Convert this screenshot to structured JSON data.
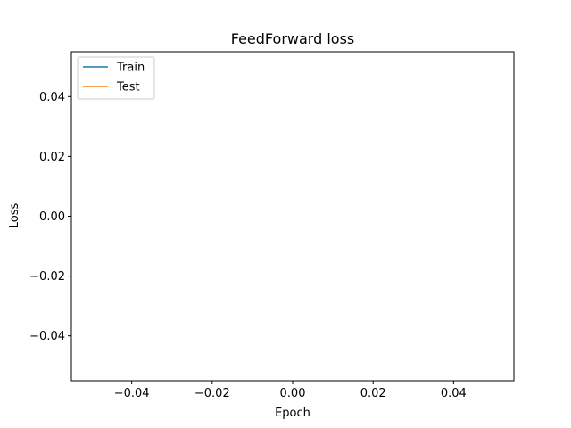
{
  "chart_data": {
    "type": "line",
    "title": "FeedForward loss",
    "xlabel": "Epoch",
    "ylabel": "Loss",
    "xlim": [
      -0.055,
      0.055
    ],
    "ylim": [
      -0.055,
      0.055
    ],
    "xticks": [
      -0.04,
      -0.02,
      0.0,
      0.02,
      0.04
    ],
    "xtick_labels": [
      "−0.04",
      "−0.02",
      "0.00",
      "0.02",
      "0.04"
    ],
    "yticks": [
      -0.04,
      -0.02,
      0.0,
      0.02,
      0.04
    ],
    "ytick_labels": [
      "−0.04",
      "−0.02",
      "0.00",
      "0.02",
      "0.04"
    ],
    "grid": false,
    "legend_position": "top-left",
    "series": [
      {
        "name": "Train",
        "color": "#1f77b4",
        "x": [],
        "y": []
      },
      {
        "name": "Test",
        "color": "#ff7f0e",
        "x": [],
        "y": []
      }
    ]
  }
}
